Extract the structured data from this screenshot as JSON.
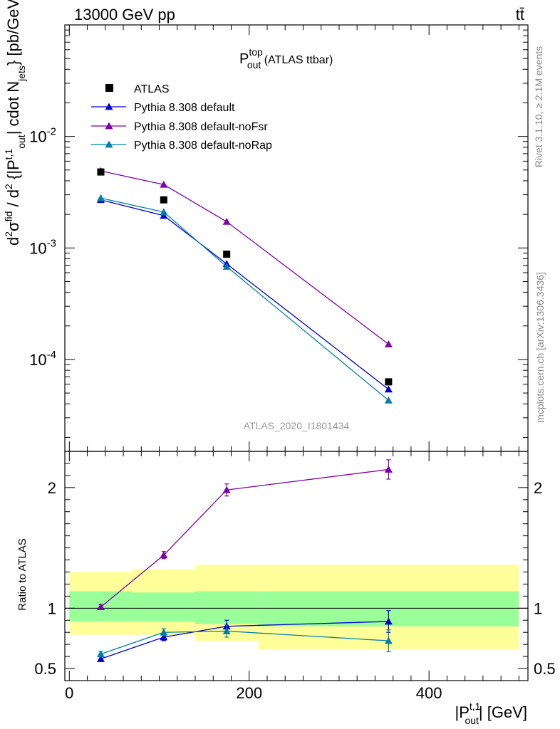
{
  "header": {
    "left": "13000 GeV pp",
    "right": "tt̄"
  },
  "side_labels": {
    "rivet": "Rivet 3.1.10, ≥ 2.1M events",
    "mcplots": "mcplots.cern.ch [arXiv:1306.3436]"
  },
  "chart_data": [
    {
      "type": "line",
      "title": "P_out^top (ATLAS ttbar)",
      "title_main": "P",
      "title_sup": "top",
      "title_sub": "out",
      "title_rest": " (ATLAS ttbar)",
      "watermark": "ATLAS_2020_I1801434",
      "ylabel": "d²σ^fid / d²{|P_out^t,1| cdot N_jets} [pb/GeV]",
      "yscale": "log",
      "ylim": [
        1.5e-05,
        0.1
      ],
      "xlim": [
        -5,
        510
      ],
      "yticklabels": [
        "10^-2",
        "10^-3",
        "10^-4"
      ],
      "x": [
        35,
        105,
        175,
        355
      ],
      "data": {
        "name": "ATLAS",
        "color": "#000000",
        "values": [
          0.0048,
          0.0027,
          0.00088,
          6.3e-05
        ]
      },
      "series": [
        {
          "name": "Pythia 8.308 default",
          "color": "#0000cc",
          "values": [
            0.0027,
            0.00195,
            0.00072,
            5.4e-05
          ]
        },
        {
          "name": "Pythia 8.308 default-noFsr",
          "color": "#7f00aa",
          "values": [
            0.0049,
            0.0037,
            0.00172,
            0.000137
          ]
        },
        {
          "name": "Pythia 8.308 default-noRap",
          "color": "#007fa8",
          "values": [
            0.0028,
            0.0021,
            0.00068,
            4.3e-05
          ]
        }
      ],
      "legend_position": "top-left"
    },
    {
      "type": "line",
      "ylabel": "Ratio to ATLAS",
      "xlabel": "|P_out^t,1| [GeV]",
      "xlabel_main": "|P",
      "xlabel_sup": "t,1",
      "xlabel_sub": "out",
      "xlabel_rest": "| [GeV]",
      "ylim": [
        0.4,
        2.3
      ],
      "xlim": [
        -5,
        510
      ],
      "yticks": [
        0.5,
        1,
        2
      ],
      "yticklabels": [
        "0.5",
        "1",
        "2"
      ],
      "xticks": [
        0,
        200,
        400
      ],
      "xticklabels": [
        "0",
        "200",
        "400"
      ],
      "bins": [
        [
          0,
          70
        ],
        [
          70,
          140
        ],
        [
          140,
          210
        ],
        [
          210,
          500
        ]
      ],
      "band_green": [
        [
          0.89,
          1.14
        ],
        [
          0.89,
          1.13
        ],
        [
          0.87,
          1.14
        ],
        [
          0.85,
          1.14
        ]
      ],
      "band_yellow": [
        [
          0.78,
          1.3
        ],
        [
          0.78,
          1.32
        ],
        [
          0.73,
          1.36
        ],
        [
          0.66,
          1.36
        ]
      ],
      "x": [
        35,
        105,
        175,
        355
      ],
      "series": [
        {
          "name": "Pythia 8.308 default",
          "color": "#0000cc",
          "values": [
            0.58,
            0.76,
            0.85,
            0.89
          ],
          "err": [
            0.02,
            0.03,
            0.05,
            0.09
          ]
        },
        {
          "name": "Pythia 8.308 default-noFsr",
          "color": "#7f00aa",
          "values": [
            1.01,
            1.44,
            1.98,
            2.15
          ],
          "err": [
            0.02,
            0.03,
            0.05,
            0.08
          ]
        },
        {
          "name": "Pythia 8.308 default-noRap",
          "color": "#007fa8",
          "values": [
            0.62,
            0.8,
            0.81,
            0.73
          ],
          "err": [
            0.02,
            0.03,
            0.05,
            0.09
          ]
        }
      ]
    }
  ]
}
